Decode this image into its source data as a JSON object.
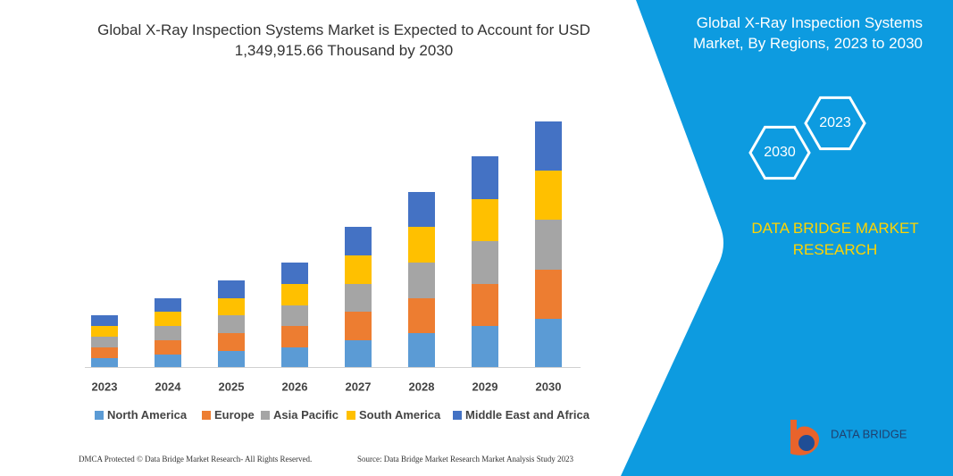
{
  "chart_data": {
    "type": "bar",
    "stacked": true,
    "title": "Global X-Ray Inspection Systems Market is Expected to Account for USD 1,349,915.66 Thousand by 2030",
    "categories": [
      "2023",
      "2024",
      "2025",
      "2026",
      "2027",
      "2028",
      "2029",
      "2030"
    ],
    "series": [
      {
        "name": "North America",
        "color": "#5b9bd5",
        "values": [
          10,
          14,
          18,
          22,
          30,
          38,
          46,
          54
        ]
      },
      {
        "name": "Europe",
        "color": "#ed7d31",
        "values": [
          12,
          16,
          20,
          24,
          32,
          39,
          47,
          55
        ]
      },
      {
        "name": "Asia Pacific",
        "color": "#a5a5a5",
        "values": [
          12,
          16,
          20,
          23,
          31,
          40,
          48,
          56
        ]
      },
      {
        "name": "South America",
        "color": "#ffc000",
        "values": [
          12,
          16,
          19,
          24,
          32,
          40,
          47,
          55
        ]
      },
      {
        "name": "Middle East and Africa",
        "color": "#4472c4",
        "values": [
          12,
          15,
          20,
          24,
          32,
          39,
          48,
          55
        ]
      }
    ],
    "legend": "bottom"
  },
  "panel": {
    "title": "Global X-Ray Inspection Systems Market, By Regions, 2023 to 2030",
    "hexagons": [
      "2023",
      "2030"
    ],
    "brand": "DATA BRIDGE MARKET RESEARCH",
    "logo": "DATA BRIDGE"
  },
  "footer": {
    "left": "DMCA Protected © Data Bridge Market Research- All Rights Reserved.",
    "right": "Source: Data Bridge Market Research  Market Analysis Study 2023"
  }
}
